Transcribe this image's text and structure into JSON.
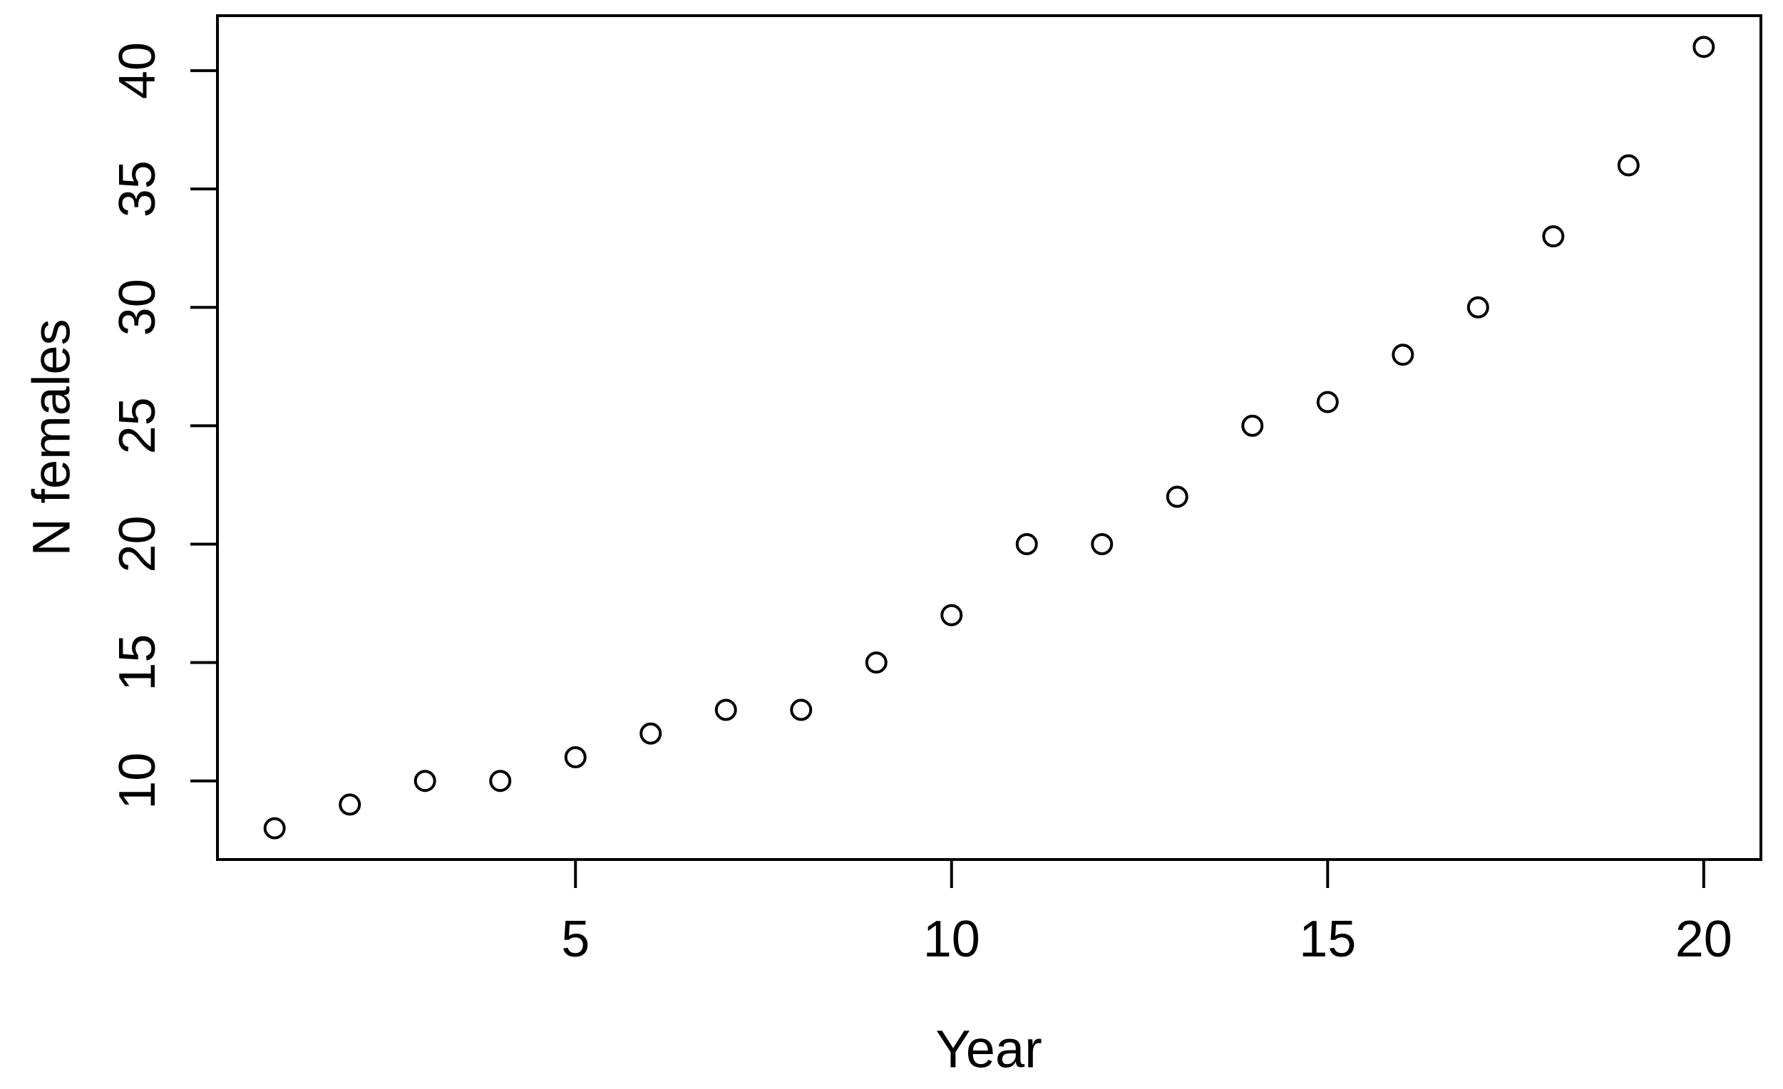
{
  "figure": {
    "background": "#ffffff",
    "foreground": "#000000"
  },
  "chart_data": {
    "type": "scatter",
    "title": "",
    "xlabel": "Year",
    "ylabel": "N females",
    "x": [
      1,
      2,
      3,
      4,
      5,
      6,
      7,
      8,
      9,
      10,
      11,
      12,
      13,
      14,
      15,
      16,
      17,
      18,
      19,
      20
    ],
    "y": [
      8,
      9,
      10,
      10,
      11,
      12,
      13,
      13,
      15,
      17,
      20,
      20,
      22,
      25,
      26,
      28,
      30,
      33,
      36,
      41
    ],
    "xticks": [
      5,
      10,
      15,
      20
    ],
    "yticks": [
      10,
      15,
      20,
      25,
      30,
      35,
      40
    ],
    "xlim": [
      0.24,
      20.76
    ],
    "ylim": [
      6.68,
      42.32
    ],
    "grid": false,
    "legend": false,
    "marker": "open-circle",
    "marker_color": "#000000",
    "axis_color": "#000000"
  }
}
